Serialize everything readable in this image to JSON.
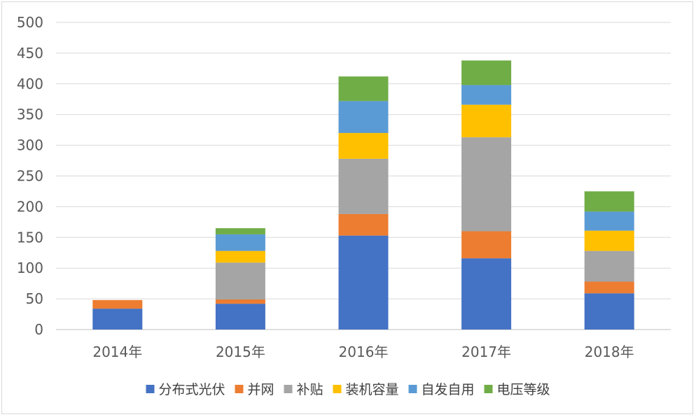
{
  "chart_data": {
    "type": "bar",
    "stacked": true,
    "title": "",
    "xlabel": "",
    "ylabel": "",
    "categories": [
      "2014年",
      "2015年",
      "2016年",
      "2017年",
      "2018年"
    ],
    "ylim": [
      0,
      500
    ],
    "yticks": [
      "0",
      "50",
      "100",
      "150",
      "200",
      "250",
      "300",
      "350",
      "400",
      "450",
      "500"
    ],
    "grid": true,
    "legend_position": "bottom",
    "series": [
      {
        "name": "分布式光伏",
        "color": "#4472C4",
        "values": [
          34,
          42,
          153,
          116,
          59
        ]
      },
      {
        "name": "并网",
        "color": "#ED7D31",
        "values": [
          14,
          7,
          35,
          44,
          19
        ]
      },
      {
        "name": "补贴",
        "color": "#A5A5A5",
        "values": [
          0,
          60,
          90,
          153,
          50
        ]
      },
      {
        "name": "装机容量",
        "color": "#FFC000",
        "values": [
          0,
          19,
          42,
          53,
          33
        ]
      },
      {
        "name": "自发自用",
        "color": "#5B9BD5",
        "values": [
          0,
          27,
          52,
          32,
          31
        ]
      },
      {
        "name": "电压等级",
        "color": "#70AD47",
        "values": [
          0,
          10,
          40,
          40,
          33
        ]
      }
    ]
  }
}
